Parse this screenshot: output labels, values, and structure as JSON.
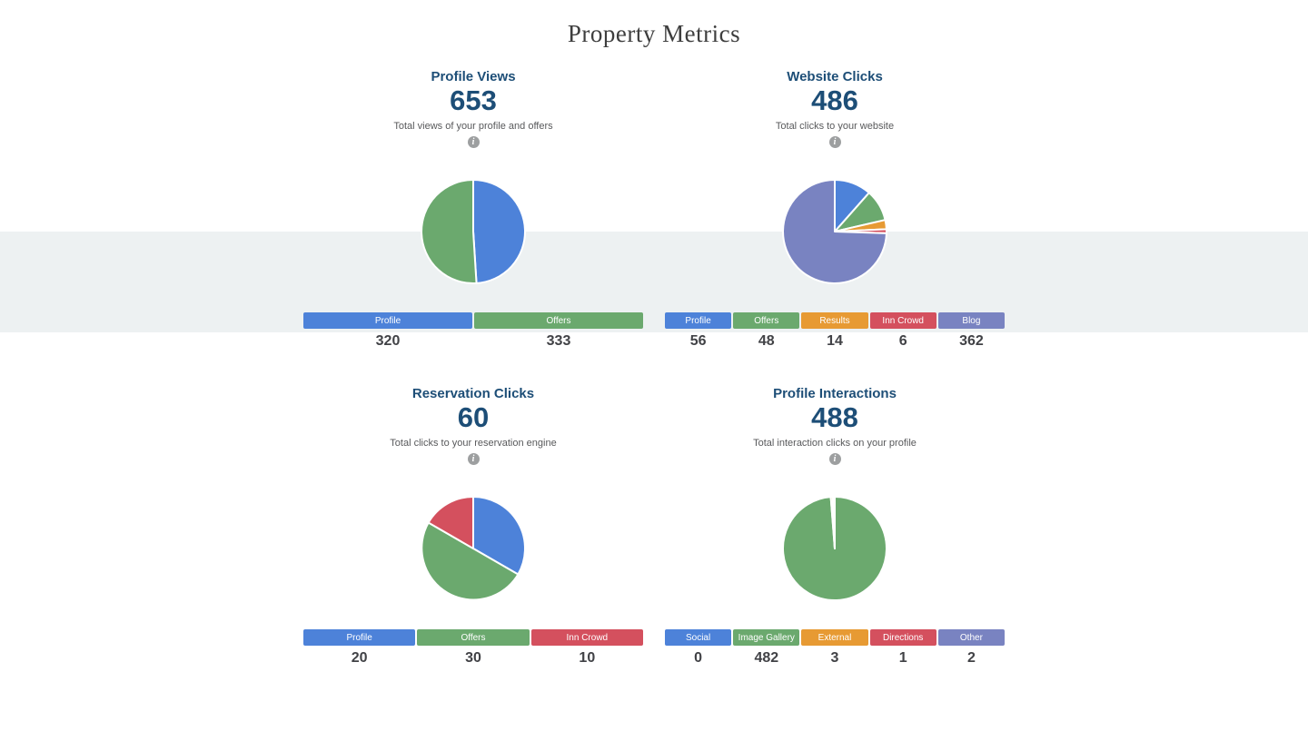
{
  "page_title": "Property Metrics",
  "theme": {
    "band_background": "#edf1f2",
    "heading_color": "#1d4e77",
    "title_color": "#3e3e3e",
    "subtitle_color": "#58595b",
    "value_text_color": "#414246",
    "info_icon_color": "#9d9fa0",
    "blue": "#4d82d9",
    "green": "#6ba96e",
    "orange": "#e79a33",
    "red": "#d4505e",
    "slate": "#7983c1"
  },
  "cards": [
    {
      "title": "Profile Views",
      "value": "653",
      "subtitle": "Total views of your profile and offers",
      "info_icon": "info-icon"
    },
    {
      "title": "Website Clicks",
      "value": "486",
      "subtitle": "Total clicks to your website",
      "info_icon": "info-icon"
    },
    {
      "title": "Reservation Clicks",
      "value": "60",
      "subtitle": "Total clicks to your reservation engine",
      "info_icon": "info-icon"
    },
    {
      "title": "Profile Interactions",
      "value": "488",
      "subtitle": "Total interaction clicks on your profile",
      "info_icon": "info-icon"
    }
  ],
  "chart_data": [
    {
      "type": "pie",
      "title": "Profile Views",
      "total": 653,
      "labels": [
        "Profile",
        "Offers"
      ],
      "values": [
        320,
        333
      ],
      "colors": [
        "#4d82d9",
        "#6ba96e"
      ],
      "legend_position": "bottom-table",
      "start_angle": "top",
      "direction": "clockwise"
    },
    {
      "type": "pie",
      "title": "Website Clicks",
      "total": 486,
      "labels": [
        "Profile",
        "Offers",
        "Results",
        "Inn Crowd",
        "Blog"
      ],
      "values": [
        56,
        48,
        14,
        6,
        362
      ],
      "colors": [
        "#4d82d9",
        "#6ba96e",
        "#e79a33",
        "#d4505e",
        "#7983c1"
      ],
      "legend_position": "bottom-table",
      "start_angle": "top",
      "direction": "clockwise"
    },
    {
      "type": "pie",
      "title": "Reservation Clicks",
      "total": 60,
      "labels": [
        "Profile",
        "Offers",
        "Inn Crowd"
      ],
      "values": [
        20,
        30,
        10
      ],
      "colors": [
        "#4d82d9",
        "#6ba96e",
        "#d4505e"
      ],
      "legend_position": "bottom-table",
      "start_angle": "top",
      "direction": "clockwise"
    },
    {
      "type": "pie",
      "title": "Profile Interactions",
      "total": 488,
      "labels": [
        "Social",
        "Image Gallery",
        "External",
        "Directions",
        "Other"
      ],
      "values": [
        0,
        482,
        3,
        1,
        2
      ],
      "colors": [
        "#4d82d9",
        "#6ba96e",
        "#e79a33",
        "#d4505e",
        "#7983c1"
      ],
      "legend_position": "bottom-table",
      "start_angle": "top",
      "direction": "clockwise"
    }
  ]
}
